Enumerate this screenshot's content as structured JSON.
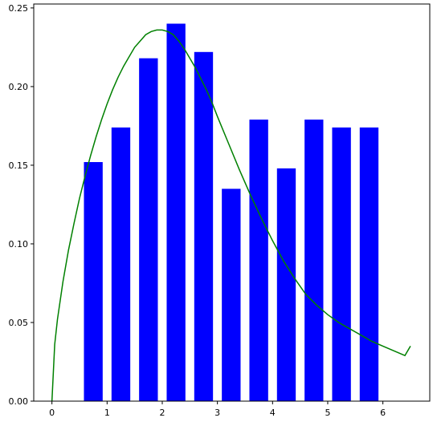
{
  "chart_data": {
    "type": "bar",
    "title": "",
    "xlabel": "",
    "ylabel": "",
    "xlim": [
      -0.33,
      6.85
    ],
    "ylim": [
      0,
      0.2525
    ],
    "x_ticks": [
      0,
      1,
      2,
      3,
      4,
      5,
      6
    ],
    "y_ticks": [
      0.0,
      0.05,
      0.1,
      0.15,
      0.2,
      0.25
    ],
    "x_tick_labels": [
      "0",
      "1",
      "2",
      "3",
      "4",
      "5",
      "6"
    ],
    "y_tick_labels": [
      "0.00",
      "0.05",
      "0.10",
      "0.15",
      "0.20",
      "0.25"
    ],
    "grid": false,
    "bar_color": "#0000ff",
    "bar_width": 0.34,
    "bars": {
      "x": [
        0.75,
        1.25,
        1.75,
        2.25,
        2.75,
        3.25,
        3.75,
        4.25,
        4.75,
        5.25,
        5.75
      ],
      "values": [
        0.152,
        0.174,
        0.218,
        0.24,
        0.222,
        0.135,
        0.179,
        0.148,
        0.179,
        0.174,
        0.174
      ]
    },
    "curve": {
      "color": "#008000",
      "x": [
        0,
        0.05,
        0.1,
        0.2,
        0.3,
        0.4,
        0.5,
        0.6,
        0.7,
        0.8,
        0.9,
        1.0,
        1.1,
        1.2,
        1.3,
        1.4,
        1.5,
        1.6,
        1.7,
        1.8,
        1.9,
        2.0,
        2.1,
        2.2,
        2.3,
        2.4,
        2.5,
        2.6,
        2.7,
        2.8,
        2.9,
        3.0,
        3.2,
        3.4,
        3.6,
        3.8,
        4.0,
        4.2,
        4.4,
        4.6,
        4.8,
        5.0,
        5.2,
        5.4,
        5.6,
        5.8,
        6.0,
        6.2,
        6.4,
        6.5
      ],
      "y": [
        0.0,
        0.036,
        0.052,
        0.076,
        0.096,
        0.113,
        0.129,
        0.143,
        0.156,
        0.168,
        0.179,
        0.189,
        0.198,
        0.206,
        0.213,
        0.219,
        0.225,
        0.229,
        0.233,
        0.235,
        0.236,
        0.236,
        0.235,
        0.233,
        0.229,
        0.224,
        0.218,
        0.212,
        0.205,
        0.198,
        0.19,
        0.181,
        0.164,
        0.147,
        0.131,
        0.116,
        0.102,
        0.089,
        0.078,
        0.068,
        0.061,
        0.055,
        0.05,
        0.046,
        0.042,
        0.038,
        0.035,
        0.032,
        0.029,
        0.035
      ]
    }
  }
}
